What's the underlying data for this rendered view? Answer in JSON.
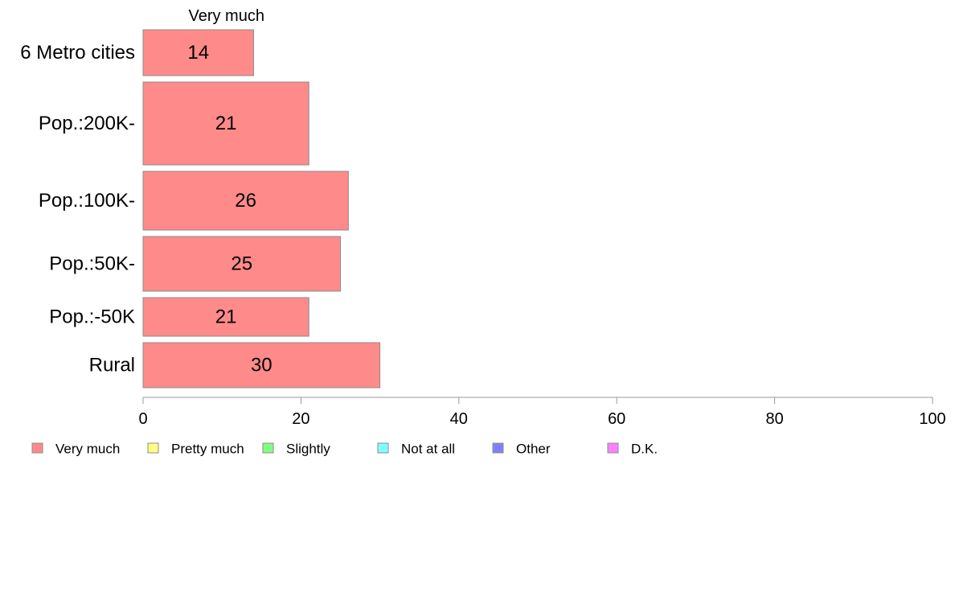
{
  "chart_data": {
    "type": "bar",
    "orientation": "horizontal",
    "stacked": true,
    "column_header": "Very much",
    "categories": [
      "6 Metro cities",
      "Pop.:200K-",
      "Pop.:100K-",
      "Pop.:50K-",
      "Pop.:-50K",
      "Rural"
    ],
    "series": [
      {
        "name": "Very much",
        "color": "#ff8a8a",
        "values": [
          14,
          21,
          26,
          25,
          21,
          30
        ]
      }
    ],
    "xlim": [
      0,
      100
    ],
    "xticks": [
      0,
      20,
      40,
      60,
      80,
      100
    ],
    "grid": false,
    "legend": {
      "position": "bottom",
      "items": [
        {
          "label": "Very much",
          "color": "#ff8a8a"
        },
        {
          "label": "Pretty much",
          "color": "#ffff80"
        },
        {
          "label": "Slightly",
          "color": "#80ff80"
        },
        {
          "label": "Not at all",
          "color": "#80ffff"
        },
        {
          "label": "Other",
          "color": "#8080ff"
        },
        {
          "label": "D.K.",
          "color": "#ff80ff"
        }
      ]
    }
  }
}
